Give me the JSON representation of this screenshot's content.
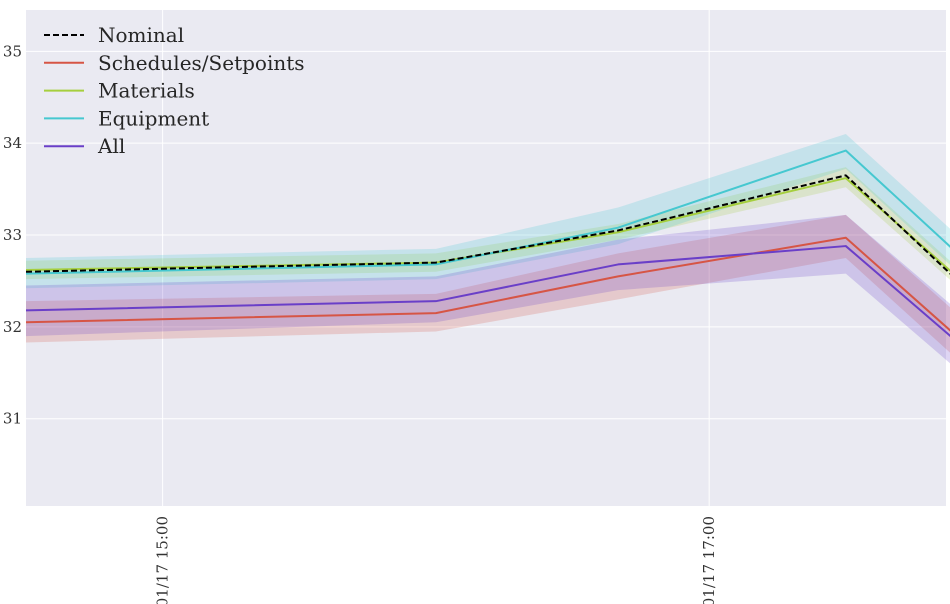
{
  "chart_data": {
    "type": "line",
    "title": "",
    "xlabel": "",
    "ylabel": "",
    "x": [
      "01/17 14:30",
      "01/17 16:00",
      "01/17 16:40",
      "01/17 17:30",
      "01/17 18:00"
    ],
    "xlim": [
      "01/17 14:30",
      "01/17 17:52"
    ],
    "ylim": [
      30.05,
      35.45
    ],
    "x_ticks": [
      {
        "label": "01/17  15:00",
        "value": "01/17 15:00"
      },
      {
        "label": "01/17  17:00",
        "value": "01/17 17:00"
      }
    ],
    "y_ticks": [
      31,
      32,
      33,
      34,
      35
    ],
    "grid": true,
    "legend_position": "top-left",
    "background": "#eaeaf2",
    "series": [
      {
        "name": "Nominal",
        "color": "#000000",
        "dashed": true,
        "values": [
          32.6,
          32.7,
          33.05,
          33.65,
          32.25
        ]
      },
      {
        "name": "Schedules/Setpoints",
        "color": "#d65545",
        "values": [
          32.05,
          32.15,
          32.55,
          32.97,
          31.65
        ],
        "lower": [
          31.83,
          31.95,
          32.3,
          32.75,
          31.4
        ],
        "upper": [
          32.28,
          32.36,
          32.8,
          33.22,
          31.9
        ]
      },
      {
        "name": "Materials",
        "color": "#a6cf3e",
        "values": [
          32.62,
          32.7,
          33.03,
          33.62,
          32.3
        ],
        "lower": [
          32.52,
          32.6,
          32.95,
          33.52,
          32.2
        ],
        "upper": [
          32.72,
          32.8,
          33.12,
          33.74,
          32.4
        ]
      },
      {
        "name": "Equipment",
        "color": "#46c8d0",
        "values": [
          32.58,
          32.68,
          33.08,
          33.92,
          32.55
        ],
        "lower": [
          32.42,
          32.52,
          32.9,
          33.72,
          32.35
        ],
        "upper": [
          32.75,
          32.85,
          33.3,
          34.1,
          32.75
        ]
      },
      {
        "name": "All",
        "color": "#6a3fc8",
        "values": [
          32.18,
          32.28,
          32.68,
          32.88,
          31.6
        ],
        "lower": [
          31.9,
          32.05,
          32.4,
          32.58,
          31.3
        ],
        "upper": [
          32.45,
          32.55,
          32.95,
          33.22,
          31.95
        ]
      }
    ]
  }
}
